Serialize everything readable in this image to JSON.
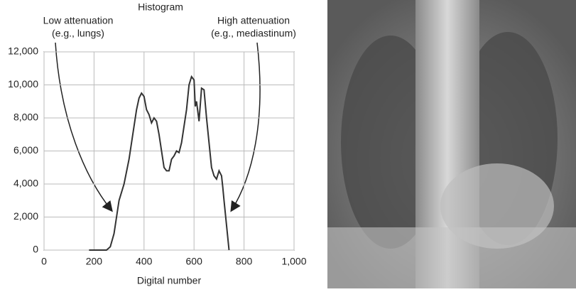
{
  "chart_data": {
    "type": "line",
    "title": "Histogram",
    "x_label": "Digital number",
    "x": [
      180,
      250,
      265,
      280,
      300,
      320,
      340,
      350,
      360,
      370,
      380,
      390,
      400,
      410,
      420,
      430,
      440,
      450,
      460,
      470,
      480,
      490,
      500,
      510,
      520,
      530,
      540,
      550,
      560,
      570,
      580,
      590,
      600,
      605,
      610,
      620,
      630,
      640,
      650,
      660,
      670,
      680,
      690,
      700,
      710,
      715,
      720,
      730,
      740
    ],
    "values": [
      0,
      0,
      200,
      1000,
      3000,
      4000,
      5500,
      6500,
      7500,
      8500,
      9200,
      9500,
      9300,
      8500,
      8200,
      7700,
      8000,
      7800,
      7000,
      6000,
      5000,
      4800,
      4800,
      5500,
      5700,
      6000,
      5900,
      6500,
      7500,
      8500,
      10000,
      10500,
      10300,
      8700,
      9000,
      7800,
      9800,
      9700,
      8000,
      6500,
      5000,
      4500,
      4300,
      4800,
      4500,
      3800,
      3000,
      1500,
      0
    ],
    "color": "#333333",
    "xlim": [
      0,
      1000
    ],
    "xticks": [
      0,
      200,
      400,
      600,
      800,
      {
        "value": 1000,
        "label": "1,000"
      }
    ],
    "ylim": [
      0,
      12000
    ],
    "yticks": [
      0,
      {
        "value": 2000,
        "label": "2,000"
      },
      {
        "value": 4000,
        "label": "4,000"
      },
      {
        "value": 6000,
        "label": "6,000"
      },
      {
        "value": 8000,
        "label": "8,000"
      },
      {
        "value": 10000,
        "label": "10,000"
      },
      {
        "value": 12000,
        "label": "12,000"
      }
    ],
    "grid": true,
    "annotations": [
      {
        "lines": [
          "Low attenuation",
          "(e.g., lungs)"
        ]
      },
      {
        "lines": [
          "High attenuation",
          "(e.g., mediastinum)"
        ]
      }
    ]
  }
}
